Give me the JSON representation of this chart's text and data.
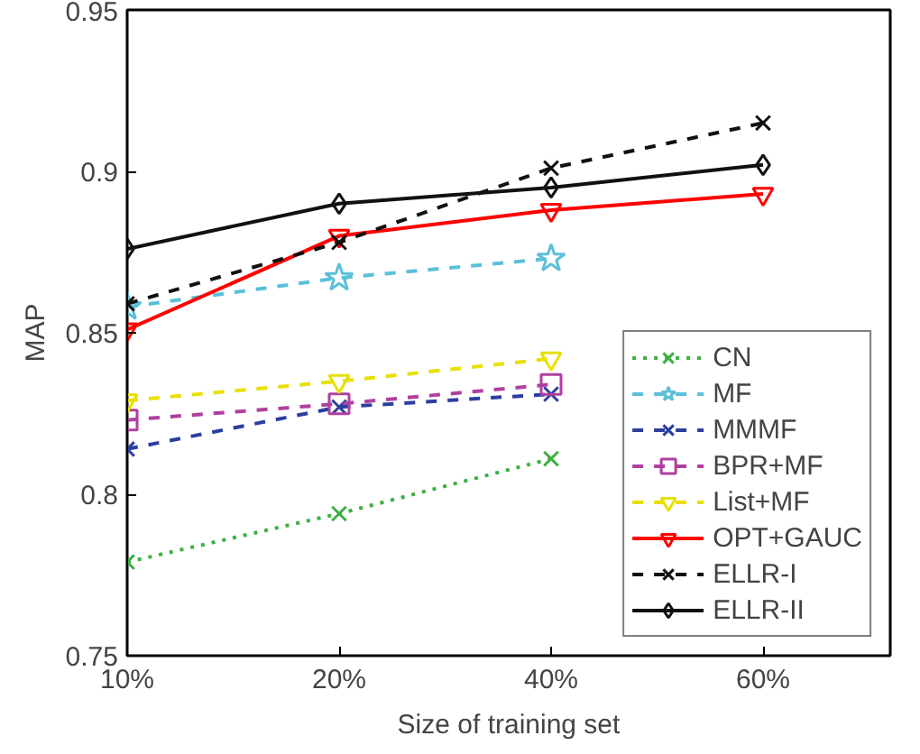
{
  "chart_data": {
    "type": "line",
    "xlabel": "Size of training set",
    "ylabel": "MAP",
    "categories": [
      "10%",
      "20%",
      "40%",
      "60%"
    ],
    "ylim": [
      0.75,
      0.95
    ],
    "yticks": [
      0.75,
      0.8,
      0.85,
      0.9,
      0.95
    ],
    "grid": false,
    "legend": "bottom right",
    "series": [
      {
        "name": "CN",
        "color": "#3cb043",
        "values": [
          0.779,
          0.794,
          0.811,
          null
        ],
        "marker": "cross",
        "line_style": "dotted"
      },
      {
        "name": "MF",
        "color": "#5bc0d8",
        "values": [
          0.858,
          0.867,
          0.873,
          null
        ],
        "marker": "star",
        "line_style": "dashed"
      },
      {
        "name": "MMMF",
        "color": "#2b3fa0",
        "values": [
          0.814,
          0.827,
          0.831,
          null
        ],
        "marker": "cross",
        "line_style": "dashed"
      },
      {
        "name": "BPR+MF",
        "color": "#b040a0",
        "values": [
          0.823,
          0.828,
          0.834,
          null
        ],
        "marker": "square",
        "line_style": "dashed"
      },
      {
        "name": "List+MF",
        "color": "#e8e000",
        "values": [
          0.829,
          0.835,
          0.842,
          null
        ],
        "marker": "triangle",
        "line_style": "dashed"
      },
      {
        "name": "OPT+GAUC",
        "color": "#ff0000",
        "values": [
          0.851,
          0.88,
          0.888,
          0.893
        ],
        "marker": "triangle",
        "line_style": "solid"
      },
      {
        "name": "ELLR-I",
        "color": "#111111",
        "values": [
          0.859,
          0.878,
          0.901,
          0.915
        ],
        "marker": "cross",
        "line_style": "dashed"
      },
      {
        "name": "ELLR-II",
        "color": "#111111",
        "values": [
          0.876,
          0.89,
          0.895,
          0.902
        ],
        "marker": "diamond",
        "line_style": "solid"
      }
    ]
  }
}
